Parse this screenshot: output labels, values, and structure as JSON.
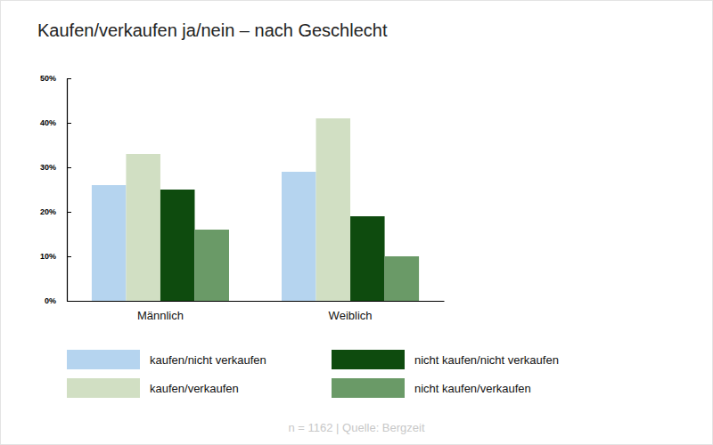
{
  "chart_data": {
    "type": "bar",
    "title": "Kaufen/verkaufen ja/nein – nach Geschlecht",
    "source": "n = 1162 | Quelle: Bergzeit",
    "categories": [
      "Männlich",
      "Weiblich"
    ],
    "series": [
      {
        "name": "kaufen/nicht verkaufen",
        "color": "#b5d4ef",
        "values": [
          26,
          29
        ]
      },
      {
        "name": "kaufen/verkaufen",
        "color": "#d1dfc3",
        "values": [
          33,
          41
        ]
      },
      {
        "name": "nicht kaufen/nicht verkaufen",
        "color": "#0e4b0e",
        "values": [
          25,
          19
        ]
      },
      {
        "name": "nicht kaufen/verkaufen",
        "color": "#6a9a67",
        "values": [
          16,
          10
        ]
      }
    ],
    "ylim": [
      0,
      50
    ],
    "yticks": [
      {
        "value": 0,
        "label": "0%"
      },
      {
        "value": 10,
        "label": "10%"
      },
      {
        "value": 20,
        "label": "20%"
      },
      {
        "value": 30,
        "label": "30%"
      },
      {
        "value": 40,
        "label": "40%"
      },
      {
        "value": 50,
        "label": "50%"
      }
    ],
    "grid": false,
    "legend": "bottom"
  }
}
